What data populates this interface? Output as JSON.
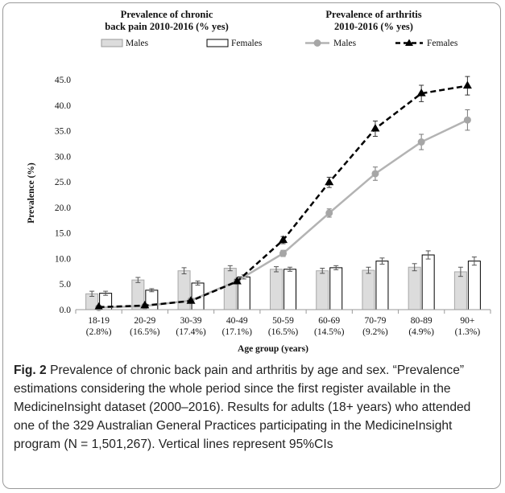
{
  "chart_data": {
    "type": "bar+line",
    "panel_titles": {
      "back_pain": [
        "Prevalence of chronic",
        "back pain 2010-2016 (% yes)"
      ],
      "arthritis": [
        "Prevalence of arthritis",
        "2010-2016 (% yes)"
      ]
    },
    "legend": {
      "bar_males": "Males",
      "bar_females": "Females",
      "line_males": "Males",
      "line_females": "Females",
      "placement": "top"
    },
    "categories": [
      "18-19",
      "20-29",
      "30-39",
      "40-49",
      "50-59",
      "60-69",
      "70-79",
      "80-89",
      "90+"
    ],
    "category_percentages": [
      "(2.8%)",
      "(16.5%)",
      "(17.4%)",
      "(17.1%)",
      "(16.5%)",
      "(14.5%)",
      "(9.2%)",
      "(4.9%)",
      "(1.3%)"
    ],
    "xlabel": "Age group (years)",
    "ylabel": "Prevalence (%)",
    "ylim": [
      0,
      45
    ],
    "yticks": [
      "0.0",
      "5.0",
      "10.0",
      "15.0",
      "20.0",
      "25.0",
      "30.0",
      "35.0",
      "40.0",
      "45.0"
    ],
    "grid": false,
    "series": [
      {
        "name": "Males",
        "kind": "bar",
        "panel": "chronic back pain",
        "color": "#dcdcdc",
        "values": [
          3.1,
          5.8,
          7.6,
          8.1,
          7.9,
          7.6,
          7.7,
          8.3,
          7.4
        ],
        "error": [
          0.5,
          0.5,
          0.6,
          0.5,
          0.5,
          0.5,
          0.6,
          0.7,
          0.9
        ]
      },
      {
        "name": "Females",
        "kind": "bar",
        "panel": "chronic back pain",
        "color": "#ffffff",
        "values": [
          3.2,
          3.8,
          5.2,
          6.4,
          7.9,
          8.2,
          9.5,
          10.7,
          9.5
        ],
        "error": [
          0.4,
          0.3,
          0.4,
          0.4,
          0.4,
          0.4,
          0.6,
          0.8,
          0.8
        ]
      },
      {
        "name": "Males",
        "kind": "line",
        "panel": "arthritis",
        "color": "#b3b3b3",
        "marker": "circle",
        "values": [
          0.4,
          0.7,
          1.8,
          5.6,
          11.0,
          18.9,
          26.6,
          32.8,
          37.1
        ],
        "error": [
          0.2,
          0.2,
          0.3,
          0.4,
          0.6,
          0.8,
          1.3,
          1.5,
          2.0
        ]
      },
      {
        "name": "Females",
        "kind": "line",
        "panel": "arthritis",
        "color": "#000000",
        "marker": "triangle",
        "dashed": true,
        "values": [
          0.5,
          0.8,
          1.7,
          5.5,
          13.6,
          24.9,
          35.4,
          42.3,
          43.8
        ],
        "error": [
          0.2,
          0.2,
          0.3,
          0.4,
          0.7,
          1.0,
          1.5,
          1.6,
          1.8
        ]
      }
    ]
  },
  "caption": {
    "label": "Fig. 2",
    "text": " Prevalence of chronic back pain and arthritis by age and sex. “Prevalence” estimations considering the whole period since the first register available in the MedicineInsight dataset (2000–2016). Results for adults (18+ years) who attended one of the 329 Australian General Practices participating in the MedicineInsight program (N = 1,501,267). Vertical lines represent 95%CIs"
  }
}
